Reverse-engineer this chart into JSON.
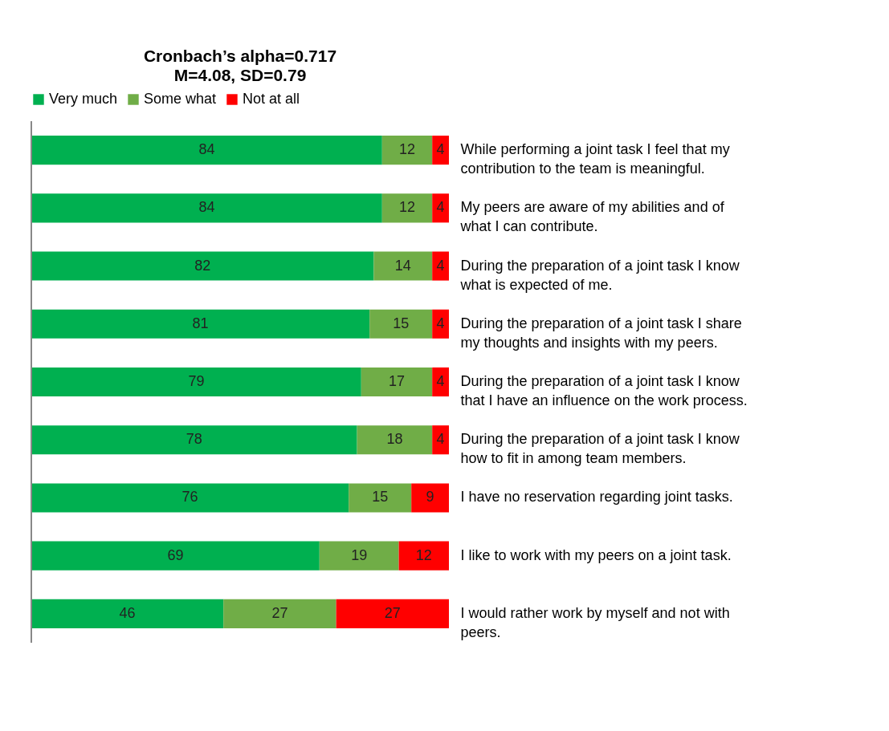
{
  "chart_data": {
    "type": "bar",
    "orientation": "horizontal",
    "stacked": true,
    "data_labels": true,
    "legend": "top",
    "grid": false,
    "title": "Cronbach’s alpha=0.717",
    "subtitle": "M=4.08, SD=0.79",
    "categories": [
      "While performing a joint task I feel that my contribution to the team is meaningful.",
      "My peers are aware of  my abilities and of what I can contribute.",
      "During the preparation of a joint task I know what is expected of me.",
      "During the preparation of a joint task I share my thoughts and insights with my peers.",
      "During the preparation of a joint task I know that I have an influence on the work process.",
      "During the preparation of a joint task I know how to fit  in among team members.",
      "I have no reservation regarding joint tasks.",
      "I like to work with my peers on a joint task.",
      "I  would rather work by myself and not with peers."
    ],
    "series": [
      {
        "name": "Very much",
        "color": "#00b050",
        "values": [
          84,
          84,
          82,
          81,
          79,
          78,
          76,
          69,
          46
        ]
      },
      {
        "name": "Some what",
        "color": "#70ad47",
        "values": [
          12,
          12,
          14,
          15,
          17,
          18,
          15,
          19,
          27
        ]
      },
      {
        "name": "Not at all",
        "color": "#ff0000",
        "values": [
          4,
          4,
          4,
          4,
          4,
          4,
          9,
          12,
          27
        ]
      }
    ]
  }
}
